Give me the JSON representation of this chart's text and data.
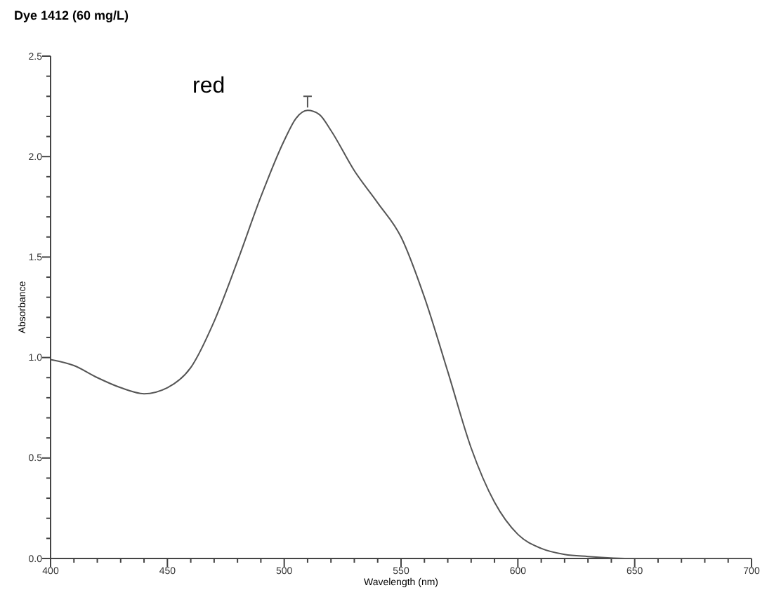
{
  "chart_data": {
    "type": "line",
    "title": "Dye 1412 (60 mg/L)",
    "xlabel": "Wavelength (nm)",
    "ylabel": "Absorbance",
    "annotations": [
      "red"
    ],
    "x": [
      400,
      410,
      420,
      430,
      440,
      450,
      460,
      470,
      480,
      490,
      500,
      505,
      510,
      515,
      520,
      530,
      540,
      550,
      560,
      570,
      580,
      590,
      600,
      610,
      620,
      630,
      650,
      700
    ],
    "series": [
      {
        "color": "#555555",
        "values": [
          0.99,
          0.96,
          0.9,
          0.85,
          0.82,
          0.85,
          0.95,
          1.18,
          1.48,
          1.8,
          2.08,
          2.19,
          2.23,
          2.21,
          2.13,
          1.93,
          1.77,
          1.6,
          1.3,
          0.93,
          0.55,
          0.28,
          0.12,
          0.05,
          0.02,
          0.01,
          0.0,
          0.0
        ]
      }
    ],
    "xlim": [
      400,
      700
    ],
    "xticks": [
      400,
      {
        "value": 410,
        "label": null
      },
      {
        "value": 420,
        "label": null
      },
      {
        "value": 430,
        "label": null
      },
      {
        "value": 440,
        "label": null
      },
      450,
      {
        "value": 460,
        "label": null
      },
      {
        "value": 470,
        "label": null
      },
      {
        "value": 480,
        "label": null
      },
      {
        "value": 490,
        "label": null
      },
      500,
      {
        "value": 510,
        "label": null
      },
      {
        "value": 520,
        "label": null
      },
      {
        "value": 530,
        "label": null
      },
      {
        "value": 540,
        "label": null
      },
      550,
      {
        "value": 560,
        "label": null
      },
      {
        "value": 570,
        "label": null
      },
      {
        "value": 580,
        "label": null
      },
      {
        "value": 590,
        "label": null
      },
      600,
      {
        "value": 610,
        "label": null
      },
      {
        "value": 620,
        "label": null
      },
      {
        "value": 630,
        "label": null
      },
      {
        "value": 640,
        "label": null
      },
      650,
      {
        "value": 660,
        "label": null
      },
      {
        "value": 670,
        "label": null
      },
      {
        "value": 680,
        "label": null
      },
      {
        "value": 690,
        "label": null
      },
      700
    ],
    "ylim": [
      0,
      2.5
    ],
    "yticks": [
      {
        "value": 0,
        "label": "0.0"
      },
      {
        "value": 0.1,
        "label": null
      },
      {
        "value": 0.2,
        "label": null
      },
      {
        "value": 0.3,
        "label": null
      },
      {
        "value": 0.4,
        "label": null
      },
      0.5,
      {
        "value": 0.6,
        "label": null
      },
      {
        "value": 0.7,
        "label": null
      },
      {
        "value": 0.8,
        "label": null
      },
      {
        "value": 0.9,
        "label": null
      },
      {
        "value": 1,
        "label": "1.0"
      },
      {
        "value": 1.1,
        "label": null
      },
      {
        "value": 1.2,
        "label": null
      },
      {
        "value": 1.3,
        "label": null
      },
      {
        "value": 1.4,
        "label": null
      },
      1.5,
      {
        "value": 1.6,
        "label": null
      },
      {
        "value": 1.7,
        "label": null
      },
      {
        "value": 1.8,
        "label": null
      },
      {
        "value": 1.9,
        "label": null
      },
      {
        "value": 2,
        "label": "2.0"
      },
      {
        "value": 2.1,
        "label": null
      },
      {
        "value": 2.2,
        "label": null
      },
      {
        "value": 2.3,
        "label": null
      },
      {
        "value": 2.4,
        "label": null
      },
      2.5
    ],
    "grid": false,
    "marker": "none",
    "line_style": "solid"
  }
}
